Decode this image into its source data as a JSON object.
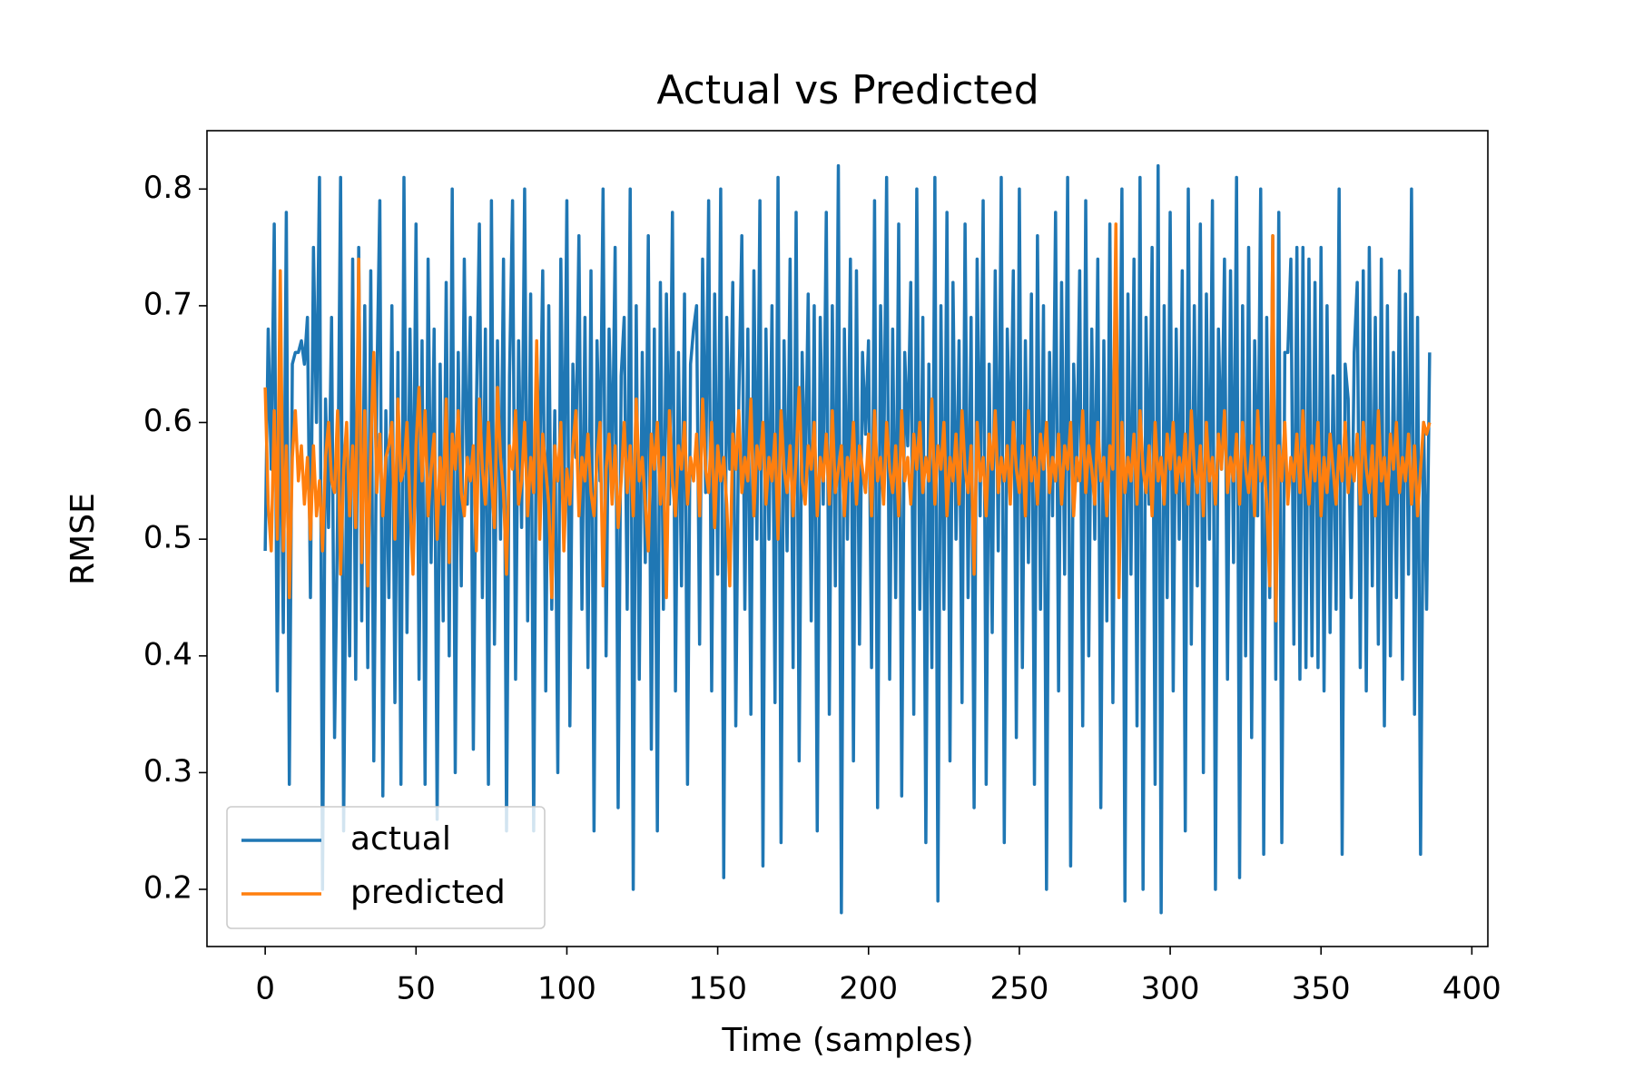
{
  "chart_data": {
    "type": "line",
    "title": "Actual vs Predicted",
    "xlabel": "Time (samples)",
    "ylabel": "RMSE",
    "xlim": [
      -19.3,
      405.3
    ],
    "ylim": [
      0.151,
      0.85
    ],
    "xticks": [
      0,
      50,
      100,
      150,
      200,
      250,
      300,
      350,
      400
    ],
    "yticks": [
      0.2,
      0.3,
      0.4,
      0.5,
      0.6,
      0.7,
      0.8
    ],
    "legend": "lower left",
    "x": [
      0,
      1,
      2,
      3,
      4,
      5,
      6,
      7,
      8,
      9,
      10,
      11,
      12,
      13,
      14,
      15,
      16,
      17,
      18,
      19,
      20,
      21,
      22,
      23,
      24,
      25,
      26,
      27,
      28,
      29,
      30,
      31,
      32,
      33,
      34,
      35,
      36,
      37,
      38,
      39,
      40,
      41,
      42,
      43,
      44,
      45,
      46,
      47,
      48,
      49,
      50,
      51,
      52,
      53,
      54,
      55,
      56,
      57,
      58,
      59,
      60,
      61,
      62,
      63,
      64,
      65,
      66,
      67,
      68,
      69,
      70,
      71,
      72,
      73,
      74,
      75,
      76,
      77,
      78,
      79,
      80,
      81,
      82,
      83,
      84,
      85,
      86,
      87,
      88,
      89,
      90,
      91,
      92,
      93,
      94,
      95,
      96,
      97,
      98,
      99,
      100,
      101,
      102,
      103,
      104,
      105,
      106,
      107,
      108,
      109,
      110,
      111,
      112,
      113,
      114,
      115,
      116,
      117,
      118,
      119,
      120,
      121,
      122,
      123,
      124,
      125,
      126,
      127,
      128,
      129,
      130,
      131,
      132,
      133,
      134,
      135,
      136,
      137,
      138,
      139,
      140,
      141,
      142,
      143,
      144,
      145,
      146,
      147,
      148,
      149,
      150,
      151,
      152,
      153,
      154,
      155,
      156,
      157,
      158,
      159,
      160,
      161,
      162,
      163,
      164,
      165,
      166,
      167,
      168,
      169,
      170,
      171,
      172,
      173,
      174,
      175,
      176,
      177,
      178,
      179,
      180,
      181,
      182,
      183,
      184,
      185,
      186,
      187,
      188,
      189,
      190,
      191,
      192,
      193,
      194,
      195,
      196,
      197,
      198,
      199,
      200,
      201,
      202,
      203,
      204,
      205,
      206,
      207,
      208,
      209,
      210,
      211,
      212,
      213,
      214,
      215,
      216,
      217,
      218,
      219,
      220,
      221,
      222,
      223,
      224,
      225,
      226,
      227,
      228,
      229,
      230,
      231,
      232,
      233,
      234,
      235,
      236,
      237,
      238,
      239,
      240,
      241,
      242,
      243,
      244,
      245,
      246,
      247,
      248,
      249,
      250,
      251,
      252,
      253,
      254,
      255,
      256,
      257,
      258,
      259,
      260,
      261,
      262,
      263,
      264,
      265,
      266,
      267,
      268,
      269,
      270,
      271,
      272,
      273,
      274,
      275,
      276,
      277,
      278,
      279,
      280,
      281,
      282,
      283,
      284,
      285,
      286,
      287,
      288,
      289,
      290,
      291,
      292,
      293,
      294,
      295,
      296,
      297,
      298,
      299,
      300,
      301,
      302,
      303,
      304,
      305,
      306,
      307,
      308,
      309,
      310,
      311,
      312,
      313,
      314,
      315,
      316,
      317,
      318,
      319,
      320,
      321,
      322,
      323,
      324,
      325,
      326,
      327,
      328,
      329,
      330,
      331,
      332,
      333,
      334,
      335,
      336,
      337,
      338,
      339,
      340,
      341,
      342,
      343,
      344,
      345,
      346,
      347,
      348,
      349,
      350,
      351,
      352,
      353,
      354,
      355,
      356,
      357,
      358,
      359,
      360,
      361,
      362,
      363,
      364,
      365,
      366,
      367,
      368,
      369,
      370,
      371,
      372,
      373,
      374,
      375,
      376,
      377,
      378,
      379,
      380,
      381,
      382,
      383,
      384,
      385,
      386
    ],
    "series": [
      {
        "name": "actual",
        "color": "#1f77b4",
        "values": [
          0.49,
          0.68,
          0.56,
          0.77,
          0.37,
          0.66,
          0.42,
          0.78,
          0.29,
          0.65,
          0.66,
          0.66,
          0.67,
          0.65,
          0.69,
          0.45,
          0.75,
          0.6,
          0.81,
          0.2,
          0.62,
          0.51,
          0.69,
          0.33,
          0.52,
          0.81,
          0.25,
          0.57,
          0.4,
          0.74,
          0.38,
          0.75,
          0.43,
          0.7,
          0.39,
          0.73,
          0.31,
          0.63,
          0.79,
          0.28,
          0.61,
          0.45,
          0.7,
          0.36,
          0.66,
          0.29,
          0.81,
          0.42,
          0.68,
          0.48,
          0.77,
          0.38,
          0.67,
          0.29,
          0.74,
          0.48,
          0.68,
          0.26,
          0.65,
          0.43,
          0.72,
          0.4,
          0.8,
          0.3,
          0.66,
          0.46,
          0.74,
          0.53,
          0.69,
          0.32,
          0.61,
          0.77,
          0.45,
          0.68,
          0.29,
          0.79,
          0.41,
          0.67,
          0.5,
          0.74,
          0.25,
          0.64,
          0.79,
          0.38,
          0.67,
          0.51,
          0.8,
          0.43,
          0.71,
          0.25,
          0.66,
          0.56,
          0.73,
          0.37,
          0.7,
          0.44,
          0.61,
          0.3,
          0.74,
          0.51,
          0.79,
          0.34,
          0.65,
          0.57,
          0.76,
          0.44,
          0.69,
          0.39,
          0.73,
          0.25,
          0.67,
          0.55,
          0.8,
          0.4,
          0.68,
          0.55,
          0.75,
          0.27,
          0.64,
          0.69,
          0.44,
          0.8,
          0.2,
          0.7,
          0.38,
          0.66,
          0.48,
          0.76,
          0.32,
          0.68,
          0.25,
          0.72,
          0.44,
          0.71,
          0.53,
          0.78,
          0.37,
          0.66,
          0.46,
          0.71,
          0.29,
          0.65,
          0.68,
          0.7,
          0.41,
          0.74,
          0.54,
          0.79,
          0.37,
          0.71,
          0.47,
          0.8,
          0.21,
          0.69,
          0.56,
          0.72,
          0.34,
          0.62,
          0.76,
          0.44,
          0.68,
          0.35,
          0.73,
          0.5,
          0.79,
          0.22,
          0.68,
          0.5,
          0.7,
          0.36,
          0.81,
          0.24,
          0.67,
          0.49,
          0.74,
          0.39,
          0.78,
          0.31,
          0.66,
          0.54,
          0.71,
          0.43,
          0.7,
          0.25,
          0.69,
          0.53,
          0.78,
          0.35,
          0.7,
          0.46,
          0.82,
          0.18,
          0.68,
          0.5,
          0.74,
          0.31,
          0.73,
          0.41,
          0.66,
          0.59,
          0.67,
          0.39,
          0.79,
          0.27,
          0.7,
          0.55,
          0.81,
          0.38,
          0.68,
          0.45,
          0.77,
          0.28,
          0.66,
          0.58,
          0.72,
          0.35,
          0.8,
          0.44,
          0.69,
          0.24,
          0.65,
          0.39,
          0.81,
          0.19,
          0.7,
          0.44,
          0.78,
          0.31,
          0.72,
          0.5,
          0.67,
          0.36,
          0.77,
          0.45,
          0.69,
          0.27,
          0.74,
          0.52,
          0.79,
          0.29,
          0.65,
          0.42,
          0.73,
          0.49,
          0.81,
          0.24,
          0.68,
          0.56,
          0.73,
          0.33,
          0.8,
          0.39,
          0.67,
          0.48,
          0.71,
          0.29,
          0.76,
          0.44,
          0.7,
          0.2,
          0.66,
          0.52,
          0.78,
          0.37,
          0.72,
          0.47,
          0.81,
          0.22,
          0.65,
          0.55,
          0.73,
          0.34,
          0.79,
          0.4,
          0.68,
          0.5,
          0.74,
          0.27,
          0.67,
          0.43,
          0.77,
          0.36,
          0.7,
          0.54,
          0.8,
          0.19,
          0.71,
          0.47,
          0.74,
          0.34,
          0.81,
          0.2,
          0.69,
          0.53,
          0.75,
          0.29,
          0.82,
          0.18,
          0.7,
          0.45,
          0.78,
          0.37,
          0.68,
          0.5,
          0.73,
          0.25,
          0.8,
          0.41,
          0.7,
          0.46,
          0.77,
          0.3,
          0.71,
          0.5,
          0.79,
          0.2,
          0.68,
          0.56,
          0.74,
          0.38,
          0.73,
          0.48,
          0.81,
          0.21,
          0.7,
          0.4,
          0.75,
          0.33,
          0.67,
          0.52,
          0.8,
          0.23,
          0.69,
          0.45,
          0.76,
          0.38,
          0.78,
          0.24,
          0.66,
          0.66,
          0.74,
          0.41,
          0.75,
          0.38,
          0.75,
          0.39,
          0.74,
          0.4,
          0.72,
          0.39,
          0.75,
          0.37,
          0.7,
          0.42,
          0.64,
          0.44,
          0.8,
          0.23,
          0.65,
          0.62,
          0.45,
          0.66,
          0.72,
          0.39,
          0.73,
          0.37,
          0.75,
          0.46,
          0.69,
          0.41,
          0.74,
          0.34,
          0.7,
          0.4,
          0.66,
          0.45,
          0.73,
          0.38,
          0.71,
          0.47,
          0.8,
          0.35,
          0.69,
          0.23,
          0.6,
          0.44,
          0.66
        ]
      },
      {
        "name": "predicted",
        "color": "#ff7f0e",
        "values": [
          0.63,
          0.53,
          0.49,
          0.61,
          0.5,
          0.73,
          0.49,
          0.58,
          0.45,
          0.57,
          0.61,
          0.55,
          0.58,
          0.53,
          0.57,
          0.5,
          0.58,
          0.52,
          0.55,
          0.49,
          0.57,
          0.6,
          0.55,
          0.54,
          0.61,
          0.47,
          0.56,
          0.6,
          0.52,
          0.58,
          0.51,
          0.74,
          0.48,
          0.61,
          0.46,
          0.58,
          0.66,
          0.54,
          0.59,
          0.52,
          0.57,
          0.58,
          0.6,
          0.5,
          0.62,
          0.55,
          0.56,
          0.6,
          0.53,
          0.47,
          0.58,
          0.63,
          0.55,
          0.61,
          0.52,
          0.56,
          0.59,
          0.5,
          0.57,
          0.53,
          0.62,
          0.48,
          0.59,
          0.56,
          0.61,
          0.54,
          0.52,
          0.57,
          0.55,
          0.58,
          0.49,
          0.62,
          0.56,
          0.53,
          0.6,
          0.55,
          0.51,
          0.63,
          0.57,
          0.54,
          0.47,
          0.58,
          0.56,
          0.61,
          0.53,
          0.55,
          0.6,
          0.52,
          0.57,
          0.54,
          0.67,
          0.5,
          0.59,
          0.56,
          0.53,
          0.45,
          0.58,
          0.55,
          0.6,
          0.49,
          0.56,
          0.53,
          0.58,
          0.61,
          0.52,
          0.57,
          0.55,
          0.59,
          0.54,
          0.52,
          0.57,
          0.6,
          0.46,
          0.56,
          0.59,
          0.53,
          0.58,
          0.51,
          0.55,
          0.6,
          0.54,
          0.58,
          0.52,
          0.62,
          0.55,
          0.57,
          0.53,
          0.49,
          0.59,
          0.56,
          0.6,
          0.53,
          0.57,
          0.45,
          0.61,
          0.55,
          0.52,
          0.58,
          0.56,
          0.6,
          0.53,
          0.57,
          0.55,
          0.59,
          0.52,
          0.62,
          0.56,
          0.54,
          0.6,
          0.51,
          0.58,
          0.55,
          0.57,
          0.53,
          0.46,
          0.59,
          0.56,
          0.61,
          0.54,
          0.57,
          0.55,
          0.62,
          0.52,
          0.58,
          0.56,
          0.6,
          0.53,
          0.57,
          0.55,
          0.59,
          0.5,
          0.61,
          0.56,
          0.54,
          0.58,
          0.52,
          0.57,
          0.63,
          0.55,
          0.53,
          0.58,
          0.56,
          0.6,
          0.52,
          0.57,
          0.55,
          0.59,
          0.53,
          0.61,
          0.54,
          0.56,
          0.58,
          0.52,
          0.57,
          0.55,
          0.6,
          0.53,
          0.58,
          0.56,
          0.54,
          0.59,
          0.52,
          0.61,
          0.55,
          0.57,
          0.53,
          0.6,
          0.56,
          0.54,
          0.58,
          0.52,
          0.61,
          0.55,
          0.57,
          0.53,
          0.59,
          0.56,
          0.6,
          0.54,
          0.57,
          0.55,
          0.62,
          0.53,
          0.58,
          0.56,
          0.6,
          0.52,
          0.57,
          0.55,
          0.59,
          0.53,
          0.61,
          0.56,
          0.54,
          0.58,
          0.47,
          0.6,
          0.55,
          0.57,
          0.52,
          0.59,
          0.56,
          0.61,
          0.54,
          0.57,
          0.55,
          0.58,
          0.53,
          0.6,
          0.56,
          0.54,
          0.58,
          0.52,
          0.61,
          0.55,
          0.57,
          0.53,
          0.59,
          0.56,
          0.6,
          0.54,
          0.57,
          0.55,
          0.59,
          0.53,
          0.58,
          0.56,
          0.6,
          0.52,
          0.57,
          0.55,
          0.61,
          0.54,
          0.58,
          0.56,
          0.53,
          0.6,
          0.55,
          0.57,
          0.52,
          0.58,
          0.56,
          0.77,
          0.45,
          0.6,
          0.54,
          0.57,
          0.55,
          0.59,
          0.53,
          0.61,
          0.56,
          0.54,
          0.58,
          0.52,
          0.6,
          0.55,
          0.57,
          0.53,
          0.59,
          0.56,
          0.6,
          0.54,
          0.57,
          0.55,
          0.59,
          0.53,
          0.61,
          0.56,
          0.54,
          0.58,
          0.52,
          0.6,
          0.55,
          0.57,
          0.53,
          0.59,
          0.56,
          0.61,
          0.54,
          0.57,
          0.55,
          0.59,
          0.53,
          0.6,
          0.56,
          0.54,
          0.58,
          0.52,
          0.61,
          0.55,
          0.57,
          0.53,
          0.46,
          0.76,
          0.43,
          0.58,
          0.55,
          0.6,
          0.53,
          0.57,
          0.55,
          0.59,
          0.54,
          0.61,
          0.56,
          0.53,
          0.58,
          0.55,
          0.6,
          0.52,
          0.57,
          0.54,
          0.59,
          0.56,
          0.53,
          0.58,
          0.55,
          0.6,
          0.54,
          0.57,
          0.55,
          0.59,
          0.53,
          0.6,
          0.56,
          0.54,
          0.58,
          0.52,
          0.61,
          0.55,
          0.57,
          0.53,
          0.59,
          0.56,
          0.6,
          0.54,
          0.57,
          0.55,
          0.59,
          0.53,
          0.58,
          0.52,
          0.56,
          0.6,
          0.59,
          0.6
        ]
      }
    ]
  }
}
